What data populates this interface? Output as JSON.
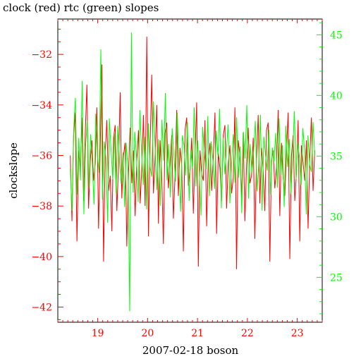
{
  "chart_data": {
    "type": "line",
    "title": "clock (red) rtc (green) slopes",
    "xlabel": "2007-02-18 boson",
    "ylabel": "clockslope",
    "xlim": [
      18.2,
      23.5
    ],
    "x_ticks": [
      19,
      20,
      21,
      22,
      23
    ],
    "ylim_left": [
      -42.6,
      -30.6
    ],
    "ylim_right": [
      21.3,
      46.3
    ],
    "left_ticks": [
      -42,
      -40,
      -38,
      -36,
      -34,
      -32
    ],
    "right_ticks": [
      25,
      30,
      35,
      40,
      45
    ],
    "grid": false,
    "series": [
      {
        "name": "clock",
        "color": "#ff0000",
        "axis": "left",
        "x_start": 18.45,
        "x_end": 23.35,
        "values": [
          -36.0,
          -38.6,
          -35.2,
          -34.3,
          -39.4,
          -35.8,
          -36.6,
          -34.5,
          -37.8,
          -35.1,
          -33.2,
          -38.1,
          -36.2,
          -35.4,
          -37.0,
          -36.3,
          -34.1,
          -38.9,
          -35.7,
          -32.4,
          -40.2,
          -35.9,
          -34.6,
          -37.4,
          -36.8,
          -39.0,
          -35.3,
          -34.8,
          -38.2,
          -36.4,
          -33.5,
          -37.7,
          -36.0,
          -35.5,
          -39.6,
          -36.7,
          -34.9,
          -37.1,
          -35.8,
          -38.4,
          -36.2,
          -35.0,
          -37.9,
          -36.5,
          -34.4,
          -38.0,
          -31.3,
          -39.2,
          -35.6,
          -32.8,
          -37.5,
          -36.1,
          -34.0,
          -38.7,
          -35.4,
          -36.9,
          -39.5,
          -35.1,
          -34.7,
          -37.3,
          -36.3,
          -35.2,
          -38.5,
          -36.8,
          -34.2,
          -37.6,
          -35.7,
          -36.4,
          -39.8,
          -35.0,
          -34.5,
          -37.2,
          -36.6,
          -35.3,
          -38.3,
          -36.0,
          -33.9,
          -40.4,
          -35.8,
          -36.7,
          -37.0,
          -34.6,
          -38.8,
          -36.2,
          -35.5,
          -37.4,
          -36.1,
          -34.3,
          -39.1,
          -35.9,
          -36.5,
          -37.8,
          -35.2,
          -34.8,
          -38.1,
          -36.3,
          -35.6,
          -37.5,
          -36.9,
          -34.1,
          -40.5,
          -35.4,
          -36.0,
          -37.7,
          -35.1,
          -38.6,
          -36.4,
          -34.9,
          -37.1,
          -36.8,
          -35.3,
          -39.3,
          -36.1,
          -34.4,
          -37.9,
          -35.7,
          -36.6,
          -38.2,
          -35.0,
          -34.7,
          -40.2,
          -36.2,
          -35.8,
          -37.3,
          -36.5,
          -34.2,
          -38.4,
          -35.5,
          -36.9,
          -37.6,
          -35.9,
          -34.3,
          -40.1,
          -36.0,
          -35.2,
          -37.8,
          -36.7,
          -34.6,
          -39.4,
          -35.6,
          -36.3,
          -37.0,
          -35.4,
          -38.9,
          -36.1,
          -34.5,
          -37.4,
          -35.8
        ]
      },
      {
        "name": "rtc",
        "color": "#00ff00",
        "axis": "right",
        "x_start": 18.45,
        "x_end": 23.35,
        "values": [
          34.0,
          30.5,
          37.2,
          39.8,
          31.8,
          36.5,
          33.0,
          41.2,
          30.2,
          35.8,
          37.9,
          32.4,
          36.8,
          34.2,
          31.0,
          38.5,
          35.0,
          33.6,
          43.8,
          31.4,
          36.2,
          34.8,
          29.5,
          38.1,
          35.6,
          33.1,
          36.9,
          31.9,
          37.5,
          34.5,
          32.7,
          35.3,
          30.8,
          36.1,
          33.8,
          22.2,
          45.2,
          32.0,
          37.0,
          34.9,
          31.2,
          38.8,
          35.4,
          32.6,
          36.6,
          30.6,
          37.7,
          34.1,
          33.3,
          39.5,
          35.7,
          32.2,
          36.4,
          30.9,
          38.0,
          34.6,
          40.2,
          33.0,
          36.0,
          31.6,
          37.3,
          35.1,
          32.9,
          38.6,
          34.3,
          30.4,
          36.7,
          35.9,
          33.4,
          37.8,
          31.3,
          35.5,
          34.0,
          39.0,
          32.5,
          36.3,
          33.7,
          30.1,
          37.4,
          35.2,
          33.9,
          38.3,
          31.7,
          36.2,
          34.7,
          32.3,
          37.1,
          35.0,
          38.9,
          30.7,
          36.5,
          33.5,
          35.6,
          37.6,
          31.1,
          34.4,
          36.8,
          32.8,
          38.2,
          33.2,
          35.8,
          30.3,
          37.0,
          34.8,
          39.2,
          31.5,
          36.0,
          33.6,
          35.4,
          37.9,
          32.1,
          34.2,
          38.4,
          30.5,
          36.6,
          35.1,
          33.8,
          37.2,
          31.8,
          35.7,
          34.5,
          36.9,
          32.4,
          38.1,
          33.4,
          35.9,
          30.8,
          37.5,
          34.1,
          36.4,
          31.9,
          35.2,
          38.7,
          33.1,
          36.1,
          34.9,
          32.6,
          37.3,
          35.5,
          30.2,
          36.7,
          34.3,
          33.7,
          37.8,
          35.0
        ]
      }
    ]
  }
}
